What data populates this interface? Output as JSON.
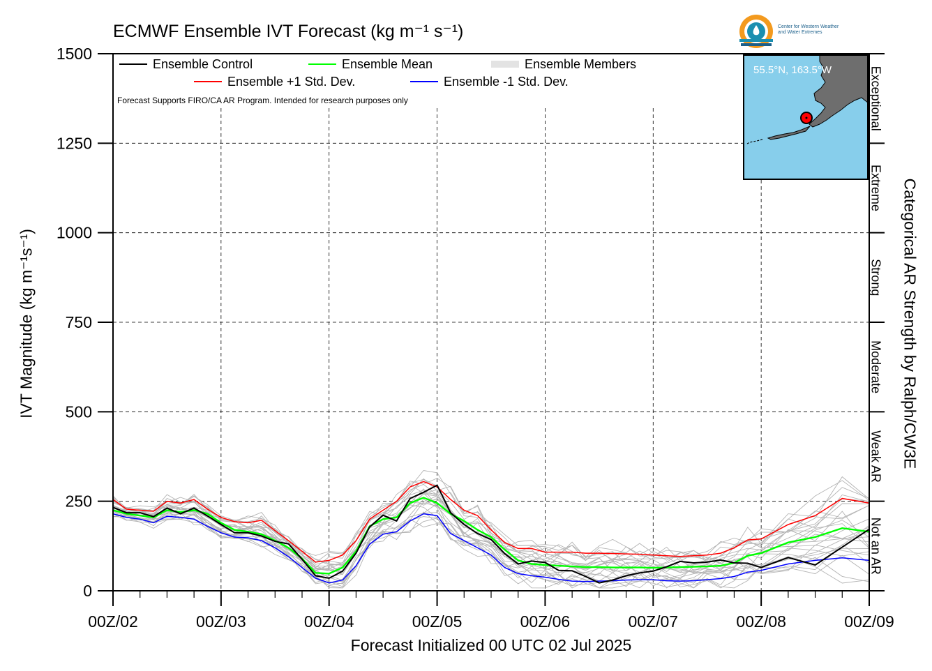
{
  "title": "ECMWF Ensemble IVT Forecast (kg m⁻¹ s⁻¹)",
  "logo": {
    "line1": "Center for Western Weather",
    "line2": "and Water Extremes",
    "colors": {
      "orange": "#f39a1e",
      "teal": "#1b8fb0",
      "navy": "#1b5f8a"
    }
  },
  "location_label": "55.5°N, 163.5°W",
  "note": "Forecast Supports FIRO/CA AR Program. Intended for research purposes only",
  "xlabel": "Forecast Initialized 00 UTC 02 Jul 2025",
  "ylabel": "IVT Magnitude (kg m⁻¹s⁻¹)",
  "right_axis_label": "Categorical AR Strength by Ralph/CW3E",
  "legend": {
    "control": "Ensemble Control",
    "mean": "Ensemble Mean",
    "members": "Ensemble Members",
    "plus_std": "Ensemble +1 Std. Dev.",
    "minus_std": "Ensemble -1 Std. Dev."
  },
  "chart_data": {
    "type": "line",
    "title": "ECMWF Ensemble IVT Forecast (kg m⁻¹ s⁻¹)",
    "xlabel": "Forecast Initialized 00 UTC 02 Jul 2025",
    "ylabel": "IVT Magnitude (kg m⁻¹s⁻¹)",
    "ylim": [
      0,
      1500
    ],
    "yticks": [
      0,
      250,
      500,
      750,
      1000,
      1250,
      1500
    ],
    "xlim_hours": [
      0,
      168
    ],
    "xtick_labels": [
      "00Z/02",
      "00Z/03",
      "00Z/04",
      "00Z/05",
      "00Z/06",
      "00Z/07",
      "00Z/08",
      "00Z/09"
    ],
    "grid": true,
    "categories_right": [
      {
        "label": "Not an AR",
        "range": [
          0,
          250
        ]
      },
      {
        "label": "Weak AR",
        "range": [
          250,
          500
        ]
      },
      {
        "label": "Moderate",
        "range": [
          500,
          750
        ]
      },
      {
        "label": "Strong",
        "range": [
          750,
          1000
        ]
      },
      {
        "label": "Extreme",
        "range": [
          1000,
          1250
        ]
      },
      {
        "label": "Exceptional",
        "range": [
          1250,
          1500
        ]
      }
    ],
    "x_hours": [
      0,
      3,
      6,
      9,
      12,
      15,
      18,
      21,
      24,
      27,
      30,
      33,
      36,
      39,
      42,
      45,
      48,
      51,
      54,
      57,
      60,
      63,
      66,
      69,
      72,
      75,
      78,
      81,
      84,
      87,
      90,
      93,
      96,
      99,
      102,
      105,
      108,
      111,
      114,
      117,
      120,
      123,
      126,
      129,
      132,
      135,
      138,
      141,
      144,
      150,
      156,
      162,
      168
    ],
    "series": [
      {
        "name": "Ensemble Control",
        "color": "#000000",
        "values": [
          233,
          218,
          218,
          207,
          231,
          215,
          231,
          209,
          185,
          162,
          162,
          153,
          138,
          131,
          88,
          42,
          35,
          55,
          105,
          178,
          211,
          195,
          258,
          275,
          295,
          218,
          185,
          160,
          143,
          104,
          75,
          83,
          79,
          57,
          56,
          40,
          22,
          30,
          42,
          50,
          55,
          67,
          82,
          78,
          80,
          86,
          78,
          77,
          65,
          93,
          72,
          122,
          172
        ]
      },
      {
        "name": "Ensemble Mean",
        "color": "#00ff00",
        "values": [
          225,
          215,
          210,
          205,
          225,
          220,
          225,
          215,
          190,
          170,
          165,
          158,
          140,
          120,
          90,
          50,
          48,
          65,
          110,
          180,
          200,
          205,
          245,
          260,
          245,
          215,
          195,
          170,
          150,
          115,
          85,
          75,
          72,
          70,
          68,
          66,
          66,
          65,
          65,
          65,
          64,
          65,
          66,
          67,
          68,
          70,
          78,
          98,
          105,
          135,
          150,
          175,
          165
        ]
      },
      {
        "name": "Ensemble +1 Std. Dev.",
        "color": "#ff0000",
        "values": [
          255,
          228,
          225,
          222,
          250,
          245,
          255,
          228,
          205,
          193,
          190,
          197,
          168,
          140,
          110,
          80,
          85,
          100,
          140,
          200,
          225,
          250,
          290,
          305,
          290,
          255,
          225,
          210,
          170,
          135,
          118,
          118,
          108,
          108,
          108,
          105,
          105,
          104,
          103,
          102,
          100,
          98,
          96,
          98,
          100,
          105,
          120,
          142,
          145,
          185,
          210,
          258,
          245
        ]
      },
      {
        "name": "Ensemble -1 Std. Dev.",
        "color": "#0000ff",
        "values": [
          215,
          205,
          200,
          190,
          208,
          205,
          200,
          180,
          162,
          150,
          148,
          140,
          120,
          95,
          65,
          35,
          22,
          30,
          70,
          130,
          158,
          165,
          195,
          215,
          210,
          160,
          140,
          120,
          100,
          65,
          48,
          42,
          38,
          32,
          27,
          26,
          27,
          28,
          30,
          31,
          31,
          28,
          27,
          28,
          31,
          34,
          40,
          52,
          57,
          75,
          85,
          92,
          85
        ]
      }
    ],
    "ensemble_members": {
      "count": 24,
      "band_low": "Ensemble -1 Std. Dev.",
      "band_high": "Ensemble +1 Std. Dev.",
      "color": "#b4b4b4"
    }
  }
}
